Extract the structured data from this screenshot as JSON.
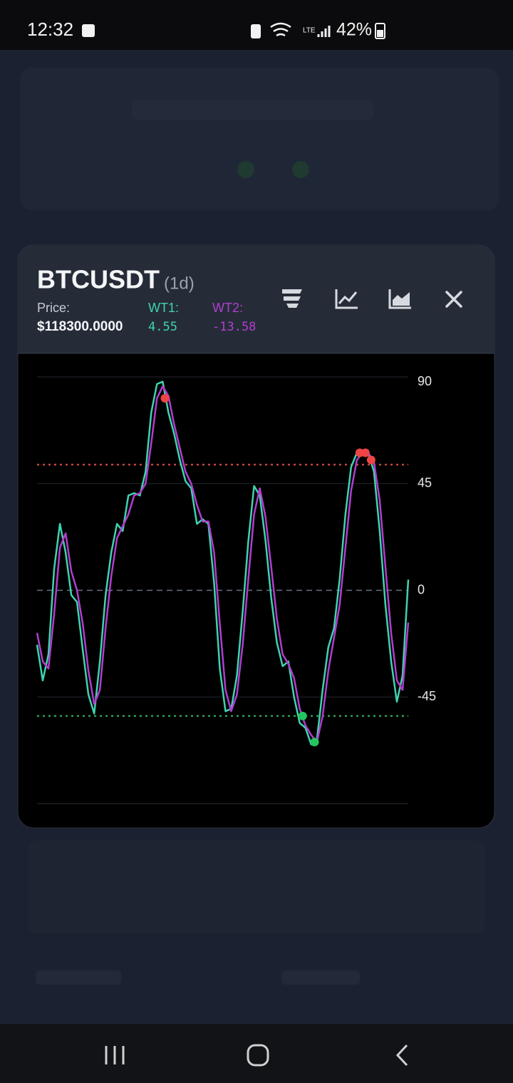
{
  "status_bar": {
    "time": "12:32",
    "battery": "42%"
  },
  "header": {
    "symbol": "BTCUSDT",
    "interval": "(1d)",
    "price_label": "Price:",
    "price": "$118300.0000",
    "wt1_label": "WT1:",
    "wt1_value": "4.55",
    "wt2_label": "WT2:",
    "wt2_value": "-13.58"
  },
  "chart_data": {
    "type": "line",
    "ylim": [
      -90,
      90
    ],
    "yticks": [
      90,
      45,
      0,
      -45
    ],
    "grid": true,
    "levels": [
      {
        "value": 53,
        "color": "#c0453a"
      },
      {
        "value": -53,
        "color": "#2f9e55"
      }
    ],
    "series": [
      {
        "name": "WT1",
        "color": "#3fd3b0",
        "values": [
          -23,
          -38,
          -27,
          9,
          28,
          16,
          -2,
          -5,
          -25,
          -44,
          -52,
          -30,
          -2,
          16,
          28,
          25,
          40,
          41,
          40,
          50,
          75,
          87,
          88,
          75,
          66,
          55,
          46,
          43,
          28,
          30,
          28,
          3,
          -33,
          -51,
          -50,
          -36,
          -9,
          21,
          44,
          40,
          21,
          -3,
          -22,
          -32,
          -30,
          -45,
          -56,
          -58,
          -65,
          -63,
          -42,
          -24,
          -16,
          5,
          32,
          52,
          58,
          59,
          58,
          50,
          25,
          -6,
          -30,
          -47,
          -36,
          4.55
        ]
      },
      {
        "name": "WT2",
        "color": "#b23dcf",
        "values": [
          -18,
          -30,
          -33,
          -10,
          18,
          24,
          8,
          0,
          -14,
          -34,
          -48,
          -42,
          -16,
          6,
          22,
          27,
          32,
          40,
          41,
          45,
          62,
          81,
          86,
          82,
          70,
          60,
          50,
          45,
          36,
          29,
          29,
          16,
          -14,
          -42,
          -51,
          -44,
          -23,
          5,
          32,
          43,
          31,
          10,
          -12,
          -27,
          -31,
          -37,
          -50,
          -57,
          -61,
          -64,
          -53,
          -34,
          -20,
          -6,
          18,
          42,
          55,
          58,
          58,
          54,
          38,
          10,
          -18,
          -38,
          -42,
          -13.58
        ]
      }
    ],
    "signals": [
      {
        "x": 22.4,
        "value": 81,
        "color": "#ef4444"
      },
      {
        "x": 56.5,
        "value": 58,
        "color": "#ef4444"
      },
      {
        "x": 57.5,
        "value": 58,
        "color": "#ef4444"
      },
      {
        "x": 58.5,
        "value": 55,
        "color": "#ef4444"
      },
      {
        "x": 46.5,
        "value": -53,
        "color": "#22c55e"
      },
      {
        "x": 48.6,
        "value": -64,
        "color": "#22c55e"
      }
    ]
  }
}
